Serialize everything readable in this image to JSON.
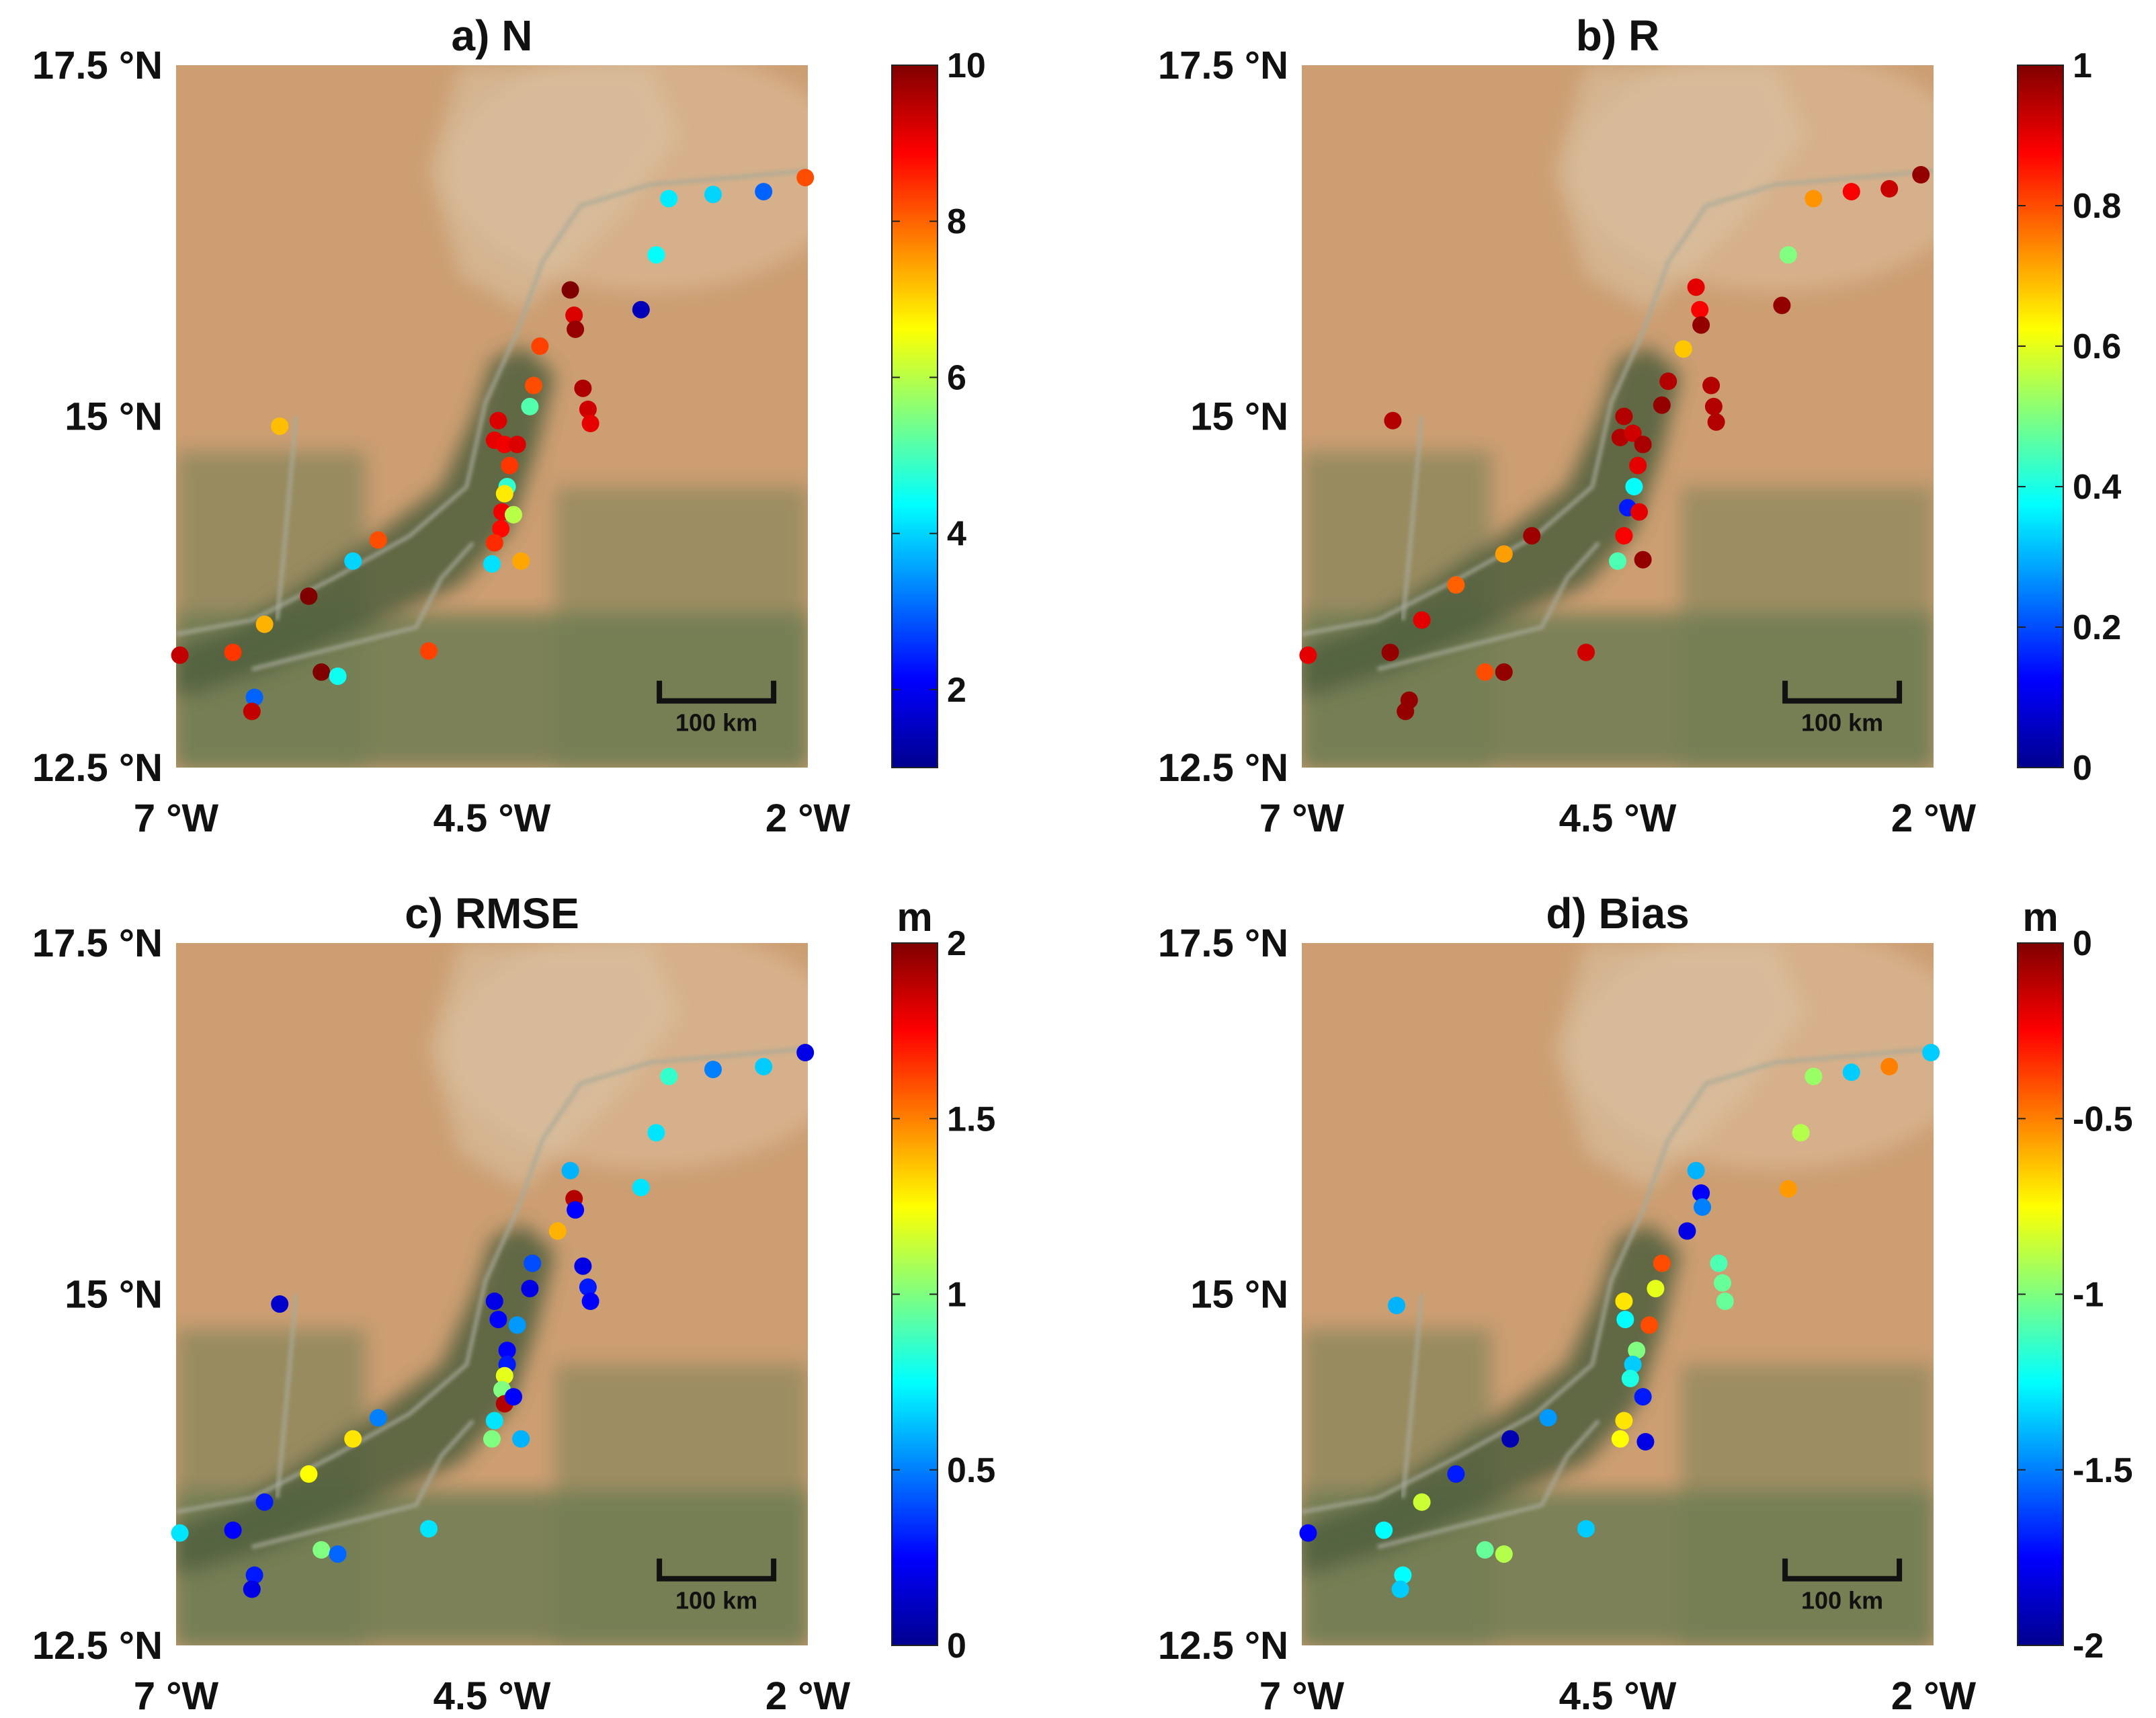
{
  "figure": {
    "colors": {
      "desert": "#cc9e72",
      "desert_light": "#d6b08a",
      "sand_pale": "#d9c2a3",
      "vegetation": "#6f7d52",
      "vegetation_dark": "#4f5e3c",
      "river": "#a8aa9a",
      "scalebar": "#111111"
    },
    "colormap": "jet",
    "axes": {
      "x_ticks": [
        {
          "label": "7 °W",
          "value": -7.0
        },
        {
          "label": "4.5 °W",
          "value": -4.5
        },
        {
          "label": "2 °W",
          "value": -2.0
        }
      ],
      "y_ticks": [
        {
          "label": "17.5 °N",
          "value": 17.5
        },
        {
          "label": "15 °N",
          "value": 15.0
        },
        {
          "label": "12.5 °N",
          "value": 12.5
        }
      ],
      "lon_range": [
        -7.0,
        -2.0
      ],
      "lat_range": [
        12.5,
        17.5
      ]
    },
    "scalebar_label": "100 km",
    "panels": [
      {
        "title": "a) N",
        "unit": "",
        "colorbar": {
          "min": 1,
          "max": 10,
          "ticks": [
            {
              "label": "10",
              "value": 10
            },
            {
              "label": "8",
              "value": 8
            },
            {
              "label": "6",
              "value": 6
            },
            {
              "label": "4",
              "value": 4
            },
            {
              "label": "2",
              "value": 2
            }
          ]
        },
        "points": [
          {
            "lon": -2.02,
            "lat": 16.7,
            "v": 8.2
          },
          {
            "lon": -2.35,
            "lat": 16.6,
            "v": 3.0
          },
          {
            "lon": -2.75,
            "lat": 16.58,
            "v": 4.0
          },
          {
            "lon": -3.1,
            "lat": 16.55,
            "v": 4.2
          },
          {
            "lon": -3.2,
            "lat": 16.15,
            "v": 4.4
          },
          {
            "lon": -3.32,
            "lat": 15.76,
            "v": 1.5
          },
          {
            "lon": -3.88,
            "lat": 15.9,
            "v": 10.0
          },
          {
            "lon": -3.85,
            "lat": 15.72,
            "v": 9.2
          },
          {
            "lon": -3.84,
            "lat": 15.62,
            "v": 9.8
          },
          {
            "lon": -4.12,
            "lat": 15.5,
            "v": 8.3
          },
          {
            "lon": -3.78,
            "lat": 15.2,
            "v": 9.6
          },
          {
            "lon": -3.74,
            "lat": 15.05,
            "v": 9.3
          },
          {
            "lon": -3.72,
            "lat": 14.95,
            "v": 9.1
          },
          {
            "lon": -4.17,
            "lat": 15.22,
            "v": 8.2
          },
          {
            "lon": -4.2,
            "lat": 15.07,
            "v": 5.1
          },
          {
            "lon": -4.45,
            "lat": 14.97,
            "v": 9.2
          },
          {
            "lon": -4.48,
            "lat": 14.83,
            "v": 9.1
          },
          {
            "lon": -4.4,
            "lat": 14.8,
            "v": 9.0
          },
          {
            "lon": -4.3,
            "lat": 14.8,
            "v": 9.2
          },
          {
            "lon": -4.36,
            "lat": 14.65,
            "v": 8.4
          },
          {
            "lon": -4.38,
            "lat": 14.5,
            "v": 4.8
          },
          {
            "lon": -4.4,
            "lat": 14.45,
            "v": 6.8
          },
          {
            "lon": -4.42,
            "lat": 14.32,
            "v": 9.0
          },
          {
            "lon": -4.33,
            "lat": 14.3,
            "v": 6.0
          },
          {
            "lon": -4.43,
            "lat": 14.2,
            "v": 8.8
          },
          {
            "lon": -4.48,
            "lat": 14.1,
            "v": 8.5
          },
          {
            "lon": -4.5,
            "lat": 13.95,
            "v": 4.1
          },
          {
            "lon": -4.27,
            "lat": 13.97,
            "v": 7.4
          },
          {
            "lon": -6.18,
            "lat": 14.93,
            "v": 7.2
          },
          {
            "lon": -5.4,
            "lat": 14.12,
            "v": 8.2
          },
          {
            "lon": -5.6,
            "lat": 13.97,
            "v": 4.0
          },
          {
            "lon": -5.95,
            "lat": 13.72,
            "v": 10.0
          },
          {
            "lon": -6.3,
            "lat": 13.52,
            "v": 7.3
          },
          {
            "lon": -6.55,
            "lat": 13.32,
            "v": 8.4
          },
          {
            "lon": -6.97,
            "lat": 13.3,
            "v": 9.4
          },
          {
            "lon": -5.85,
            "lat": 13.18,
            "v": 10.0
          },
          {
            "lon": -5.72,
            "lat": 13.15,
            "v": 4.5
          },
          {
            "lon": -5.0,
            "lat": 13.33,
            "v": 8.3
          },
          {
            "lon": -6.38,
            "lat": 13.0,
            "v": 3.0
          },
          {
            "lon": -6.4,
            "lat": 12.9,
            "v": 9.4
          }
        ]
      },
      {
        "title": "b) R",
        "unit": "",
        "colorbar": {
          "min": 0,
          "max": 1,
          "ticks": [
            {
              "label": "1",
              "value": 1
            },
            {
              "label": "0.8",
              "value": 0.8
            },
            {
              "label": "0.6",
              "value": 0.6
            },
            {
              "label": "0.4",
              "value": 0.4
            },
            {
              "label": "0.2",
              "value": 0.2
            },
            {
              "label": "0",
              "value": 0
            }
          ]
        },
        "points": [
          {
            "lon": -2.1,
            "lat": 16.72,
            "v": 0.98
          },
          {
            "lon": -2.35,
            "lat": 16.62,
            "v": 0.93
          },
          {
            "lon": -2.65,
            "lat": 16.6,
            "v": 0.88
          },
          {
            "lon": -2.95,
            "lat": 16.55,
            "v": 0.73
          },
          {
            "lon": -3.15,
            "lat": 16.15,
            "v": 0.5
          },
          {
            "lon": -3.2,
            "lat": 15.79,
            "v": 0.98
          },
          {
            "lon": -3.88,
            "lat": 15.92,
            "v": 0.9
          },
          {
            "lon": -3.85,
            "lat": 15.76,
            "v": 0.88
          },
          {
            "lon": -3.84,
            "lat": 15.65,
            "v": 0.98
          },
          {
            "lon": -3.98,
            "lat": 15.48,
            "v": 0.68
          },
          {
            "lon": -3.76,
            "lat": 15.22,
            "v": 0.95
          },
          {
            "lon": -3.74,
            "lat": 15.07,
            "v": 0.95
          },
          {
            "lon": -3.72,
            "lat": 14.96,
            "v": 0.95
          },
          {
            "lon": -4.1,
            "lat": 15.25,
            "v": 0.95
          },
          {
            "lon": -4.15,
            "lat": 15.08,
            "v": 0.98
          },
          {
            "lon": -4.45,
            "lat": 15.0,
            "v": 0.95
          },
          {
            "lon": -4.48,
            "lat": 14.85,
            "v": 0.95
          },
          {
            "lon": -4.38,
            "lat": 14.88,
            "v": 0.92
          },
          {
            "lon": -4.3,
            "lat": 14.8,
            "v": 0.96
          },
          {
            "lon": -4.34,
            "lat": 14.65,
            "v": 0.9
          },
          {
            "lon": -4.37,
            "lat": 14.5,
            "v": 0.38
          },
          {
            "lon": -4.42,
            "lat": 14.35,
            "v": 0.15
          },
          {
            "lon": -4.33,
            "lat": 14.32,
            "v": 0.9
          },
          {
            "lon": -4.45,
            "lat": 14.15,
            "v": 0.88
          },
          {
            "lon": -4.5,
            "lat": 13.97,
            "v": 0.45
          },
          {
            "lon": -4.3,
            "lat": 13.98,
            "v": 0.98
          },
          {
            "lon": -6.28,
            "lat": 14.97,
            "v": 0.95
          },
          {
            "lon": -5.18,
            "lat": 14.15,
            "v": 0.97
          },
          {
            "lon": -5.4,
            "lat": 14.02,
            "v": 0.72
          },
          {
            "lon": -5.78,
            "lat": 13.8,
            "v": 0.78
          },
          {
            "lon": -6.05,
            "lat": 13.55,
            "v": 0.9
          },
          {
            "lon": -6.3,
            "lat": 13.32,
            "v": 0.98
          },
          {
            "lon": -6.95,
            "lat": 13.3,
            "v": 0.9
          },
          {
            "lon": -5.4,
            "lat": 13.18,
            "v": 0.98
          },
          {
            "lon": -5.55,
            "lat": 13.18,
            "v": 0.8
          },
          {
            "lon": -4.75,
            "lat": 13.32,
            "v": 0.92
          },
          {
            "lon": -6.15,
            "lat": 12.98,
            "v": 0.98
          },
          {
            "lon": -6.18,
            "lat": 12.9,
            "v": 0.98
          }
        ]
      },
      {
        "title": "c) RMSE",
        "unit": "m",
        "colorbar": {
          "min": 0,
          "max": 2,
          "ticks": [
            {
              "label": "2",
              "value": 2
            },
            {
              "label": "1.5",
              "value": 1.5
            },
            {
              "label": "1",
              "value": 1
            },
            {
              "label": "0.5",
              "value": 0.5
            },
            {
              "label": "0",
              "value": 0
            }
          ]
        },
        "points": [
          {
            "lon": -2.02,
            "lat": 16.72,
            "v": 0.2
          },
          {
            "lon": -2.35,
            "lat": 16.62,
            "v": 0.65
          },
          {
            "lon": -2.75,
            "lat": 16.6,
            "v": 0.5
          },
          {
            "lon": -3.1,
            "lat": 16.55,
            "v": 0.85
          },
          {
            "lon": -3.2,
            "lat": 16.15,
            "v": 0.7
          },
          {
            "lon": -3.32,
            "lat": 15.76,
            "v": 0.7
          },
          {
            "lon": -3.88,
            "lat": 15.88,
            "v": 0.6
          },
          {
            "lon": -3.85,
            "lat": 15.68,
            "v": 1.9
          },
          {
            "lon": -3.84,
            "lat": 15.6,
            "v": 0.25
          },
          {
            "lon": -3.98,
            "lat": 15.45,
            "v": 1.4
          },
          {
            "lon": -3.78,
            "lat": 15.2,
            "v": 0.2
          },
          {
            "lon": -3.74,
            "lat": 15.05,
            "v": 0.3
          },
          {
            "lon": -3.72,
            "lat": 14.95,
            "v": 0.25
          },
          {
            "lon": -4.18,
            "lat": 15.22,
            "v": 0.4
          },
          {
            "lon": -4.2,
            "lat": 15.04,
            "v": 0.2
          },
          {
            "lon": -4.48,
            "lat": 14.95,
            "v": 0.2
          },
          {
            "lon": -4.45,
            "lat": 14.82,
            "v": 0.25
          },
          {
            "lon": -4.3,
            "lat": 14.78,
            "v": 0.55
          },
          {
            "lon": -4.38,
            "lat": 14.6,
            "v": 0.25
          },
          {
            "lon": -4.38,
            "lat": 14.5,
            "v": 0.3
          },
          {
            "lon": -4.4,
            "lat": 14.42,
            "v": 1.2
          },
          {
            "lon": -4.42,
            "lat": 14.32,
            "v": 1.0
          },
          {
            "lon": -4.4,
            "lat": 14.22,
            "v": 1.9
          },
          {
            "lon": -4.33,
            "lat": 14.27,
            "v": 0.25
          },
          {
            "lon": -4.48,
            "lat": 14.1,
            "v": 0.7
          },
          {
            "lon": -4.5,
            "lat": 13.97,
            "v": 1.0
          },
          {
            "lon": -4.27,
            "lat": 13.97,
            "v": 0.6
          },
          {
            "lon": -6.18,
            "lat": 14.93,
            "v": 0.15
          },
          {
            "lon": -5.4,
            "lat": 14.12,
            "v": 0.5
          },
          {
            "lon": -5.6,
            "lat": 13.97,
            "v": 1.3
          },
          {
            "lon": -5.95,
            "lat": 13.72,
            "v": 1.25
          },
          {
            "lon": -6.3,
            "lat": 13.52,
            "v": 0.3
          },
          {
            "lon": -6.55,
            "lat": 13.32,
            "v": 0.25
          },
          {
            "lon": -6.97,
            "lat": 13.3,
            "v": 0.7
          },
          {
            "lon": -5.85,
            "lat": 13.18,
            "v": 1.0
          },
          {
            "lon": -5.72,
            "lat": 13.15,
            "v": 0.45
          },
          {
            "lon": -5.0,
            "lat": 13.33,
            "v": 0.7
          },
          {
            "lon": -6.38,
            "lat": 13.0,
            "v": 0.3
          },
          {
            "lon": -6.4,
            "lat": 12.9,
            "v": 0.2
          }
        ]
      },
      {
        "title": "d) Bias",
        "unit": "m",
        "colorbar": {
          "min": -2,
          "max": 0,
          "ticks": [
            {
              "label": "0",
              "value": 0
            },
            {
              "label": "-0.5",
              "value": -0.5
            },
            {
              "label": "-1",
              "value": -1
            },
            {
              "label": "-1.5",
              "value": -1.5
            },
            {
              "label": "-2",
              "value": -2
            }
          ]
        },
        "points": [
          {
            "lon": -2.02,
            "lat": 16.72,
            "v": -1.35
          },
          {
            "lon": -2.35,
            "lat": 16.62,
            "v": -0.5
          },
          {
            "lon": -2.65,
            "lat": 16.58,
            "v": -1.35
          },
          {
            "lon": -2.95,
            "lat": 16.55,
            "v": -0.95
          },
          {
            "lon": -3.05,
            "lat": 16.15,
            "v": -0.9
          },
          {
            "lon": -3.15,
            "lat": 15.75,
            "v": -0.55
          },
          {
            "lon": -3.88,
            "lat": 15.88,
            "v": -1.4
          },
          {
            "lon": -3.84,
            "lat": 15.72,
            "v": -1.75
          },
          {
            "lon": -3.83,
            "lat": 15.62,
            "v": -1.5
          },
          {
            "lon": -3.95,
            "lat": 15.45,
            "v": -1.8
          },
          {
            "lon": -3.7,
            "lat": 15.22,
            "v": -1.1
          },
          {
            "lon": -3.67,
            "lat": 15.08,
            "v": -1.05
          },
          {
            "lon": -3.65,
            "lat": 14.95,
            "v": -1.05
          },
          {
            "lon": -4.15,
            "lat": 15.22,
            "v": -0.4
          },
          {
            "lon": -4.2,
            "lat": 15.04,
            "v": -0.8
          },
          {
            "lon": -4.45,
            "lat": 14.95,
            "v": -0.7
          },
          {
            "lon": -4.44,
            "lat": 14.82,
            "v": -1.25
          },
          {
            "lon": -4.25,
            "lat": 14.78,
            "v": -0.4
          },
          {
            "lon": -4.35,
            "lat": 14.6,
            "v": -1.0
          },
          {
            "lon": -4.38,
            "lat": 14.5,
            "v": -1.35
          },
          {
            "lon": -4.4,
            "lat": 14.4,
            "v": -1.2
          },
          {
            "lon": -4.3,
            "lat": 14.27,
            "v": -1.7
          },
          {
            "lon": -4.45,
            "lat": 14.1,
            "v": -0.7
          },
          {
            "lon": -4.48,
            "lat": 13.97,
            "v": -0.75
          },
          {
            "lon": -4.28,
            "lat": 13.95,
            "v": -1.8
          },
          {
            "lon": -6.25,
            "lat": 14.92,
            "v": -1.4
          },
          {
            "lon": -5.05,
            "lat": 14.12,
            "v": -1.45
          },
          {
            "lon": -5.35,
            "lat": 13.97,
            "v": -1.9
          },
          {
            "lon": -5.78,
            "lat": 13.72,
            "v": -1.7
          },
          {
            "lon": -6.05,
            "lat": 13.52,
            "v": -0.85
          },
          {
            "lon": -6.35,
            "lat": 13.32,
            "v": -1.25
          },
          {
            "lon": -6.95,
            "lat": 13.3,
            "v": -1.75
          },
          {
            "lon": -5.55,
            "lat": 13.18,
            "v": -1.05
          },
          {
            "lon": -5.4,
            "lat": 13.15,
            "v": -0.9
          },
          {
            "lon": -4.75,
            "lat": 13.33,
            "v": -1.35
          },
          {
            "lon": -6.2,
            "lat": 13.0,
            "v": -1.25
          },
          {
            "lon": -6.22,
            "lat": 12.9,
            "v": -1.35
          }
        ]
      }
    ]
  }
}
